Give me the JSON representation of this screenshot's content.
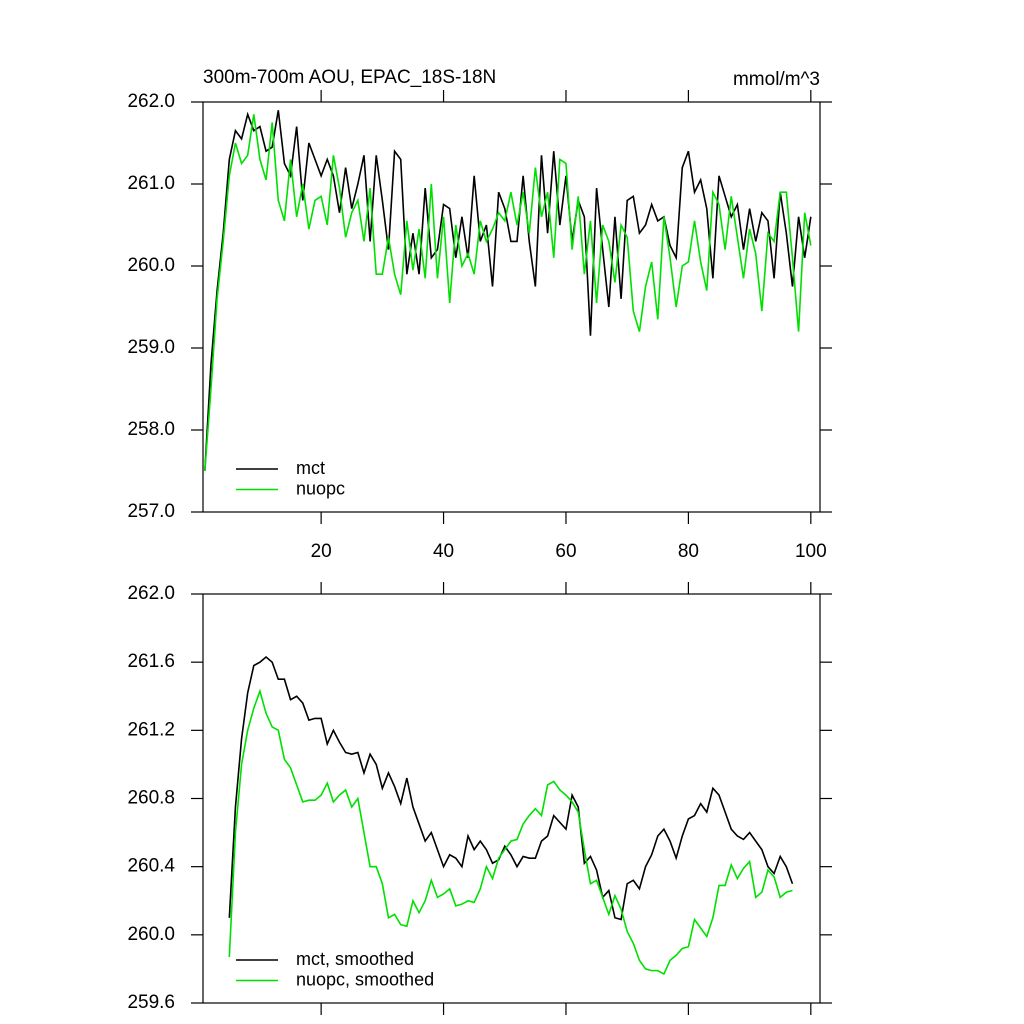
{
  "chart_data": [
    {
      "type": "line",
      "title": "300m-700m AOU, EPAC_18S-18N",
      "units": "mmol/m^3",
      "x": [
        1,
        2,
        3,
        4,
        5,
        6,
        7,
        8,
        9,
        10,
        11,
        12,
        13,
        14,
        15,
        16,
        17,
        18,
        19,
        20,
        21,
        22,
        23,
        24,
        25,
        26,
        27,
        28,
        29,
        30,
        31,
        32,
        33,
        34,
        35,
        36,
        37,
        38,
        39,
        40,
        41,
        42,
        43,
        44,
        45,
        46,
        47,
        48,
        49,
        50,
        51,
        52,
        53,
        54,
        55,
        56,
        57,
        58,
        59,
        60,
        61,
        62,
        63,
        64,
        65,
        66,
        67,
        68,
        69,
        70,
        71,
        72,
        73,
        74,
        75,
        76,
        77,
        78,
        79,
        80,
        81,
        82,
        83,
        84,
        85,
        86,
        87,
        88,
        89,
        90,
        91,
        92,
        93,
        94,
        95,
        96,
        97,
        98,
        99,
        100
      ],
      "series": [
        {
          "name": "mct",
          "color": "#000000",
          "values": [
            257.5,
            258.8,
            259.7,
            260.4,
            261.3,
            261.65,
            261.55,
            261.85,
            261.65,
            261.7,
            261.4,
            261.45,
            261.9,
            261.25,
            261.1,
            261.7,
            260.8,
            261.5,
            261.3,
            261.1,
            261.3,
            261.1,
            260.65,
            261.2,
            260.7,
            261.0,
            261.35,
            260.3,
            261.35,
            260.8,
            260.2,
            261.4,
            261.3,
            259.9,
            260.4,
            259.9,
            260.95,
            260.1,
            260.2,
            260.75,
            260.7,
            260.1,
            260.6,
            260.1,
            261.1,
            260.3,
            260.5,
            259.75,
            260.9,
            260.7,
            260.3,
            260.3,
            261.1,
            260.3,
            259.75,
            261.35,
            260.4,
            261.4,
            260.5,
            261.1,
            260.3,
            260.8,
            260.6,
            259.15,
            260.95,
            260.2,
            259.5,
            260.6,
            259.6,
            260.8,
            260.85,
            260.4,
            260.5,
            260.75,
            260.55,
            260.6,
            260.25,
            260.1,
            261.2,
            261.4,
            260.9,
            261.05,
            260.7,
            259.85,
            261.1,
            260.85,
            260.6,
            260.75,
            260.2,
            260.7,
            260.3,
            260.65,
            260.55,
            259.85,
            260.9,
            260.4,
            259.75,
            260.6,
            260.1,
            260.6
          ]
        },
        {
          "name": "nuopc",
          "color": "#00e000",
          "values": [
            257.5,
            258.5,
            259.6,
            260.3,
            261.1,
            261.5,
            261.25,
            261.35,
            261.85,
            261.3,
            261.05,
            261.75,
            260.8,
            260.55,
            261.3,
            260.6,
            261.0,
            260.45,
            260.8,
            260.85,
            260.5,
            261.35,
            260.95,
            260.35,
            260.65,
            260.8,
            260.3,
            260.95,
            259.9,
            259.9,
            260.35,
            259.9,
            259.65,
            260.55,
            259.95,
            260.45,
            259.85,
            261.0,
            259.85,
            260.6,
            259.55,
            260.5,
            260.0,
            260.15,
            259.9,
            260.55,
            260.3,
            260.45,
            260.65,
            260.55,
            260.9,
            260.5,
            260.9,
            260.4,
            261.2,
            260.6,
            260.9,
            260.1,
            261.3,
            261.25,
            260.2,
            260.85,
            259.9,
            260.55,
            259.55,
            260.5,
            260.3,
            259.8,
            260.5,
            260.35,
            259.45,
            259.2,
            259.75,
            260.05,
            259.35,
            260.6,
            260.1,
            259.5,
            260.0,
            260.05,
            260.55,
            260.05,
            259.7,
            260.9,
            260.75,
            260.2,
            260.85,
            260.35,
            259.85,
            260.45,
            260.15,
            259.45,
            260.4,
            260.3,
            260.9,
            260.9,
            260.1,
            259.2,
            260.65,
            260.25
          ]
        }
      ],
      "xlim": [
        0.7,
        101.5
      ],
      "xticks": [
        20,
        40,
        60,
        80,
        100
      ],
      "xtick_labels": true,
      "ylim": [
        257,
        262
      ],
      "yticks": [
        {
          "value": 257,
          "label": "257.0"
        },
        {
          "value": 258,
          "label": "258.0"
        },
        {
          "value": 259,
          "label": "259.0"
        },
        {
          "value": 260,
          "label": "260.0"
        },
        {
          "value": 261,
          "label": "261.0"
        },
        {
          "value": 262,
          "label": "262.0"
        }
      ],
      "legend": "lower left"
    },
    {
      "type": "line",
      "x": [
        5,
        6,
        7,
        8,
        9,
        10,
        11,
        12,
        13,
        14,
        15,
        16,
        17,
        18,
        19,
        20,
        21,
        22,
        23,
        24,
        25,
        26,
        27,
        28,
        29,
        30,
        31,
        32,
        33,
        34,
        35,
        36,
        37,
        38,
        39,
        40,
        41,
        42,
        43,
        44,
        45,
        46,
        47,
        48,
        49,
        50,
        51,
        52,
        53,
        54,
        55,
        56,
        57,
        58,
        59,
        60,
        61,
        62,
        63,
        64,
        65,
        66,
        67,
        68,
        69,
        70,
        71,
        72,
        73,
        74,
        75,
        76,
        77,
        78,
        79,
        80,
        81,
        82,
        83,
        84,
        85,
        86,
        87,
        88,
        89,
        90,
        91,
        92,
        93,
        94,
        95,
        96,
        97
      ],
      "series": [
        {
          "name": "mct, smoothed",
          "color": "#000000",
          "values": [
            260.1,
            260.75,
            261.15,
            261.42,
            261.58,
            261.6,
            261.63,
            261.6,
            261.5,
            261.5,
            261.38,
            261.4,
            261.36,
            261.26,
            261.27,
            261.27,
            261.12,
            261.2,
            261.13,
            261.07,
            261.06,
            261.07,
            260.95,
            261.06,
            261.0,
            260.86,
            260.95,
            260.87,
            260.77,
            260.92,
            260.75,
            260.65,
            260.55,
            260.6,
            260.5,
            260.4,
            260.47,
            260.45,
            260.4,
            260.58,
            260.5,
            260.55,
            260.5,
            260.42,
            260.44,
            260.52,
            260.47,
            260.4,
            260.46,
            260.45,
            260.45,
            260.55,
            260.58,
            260.7,
            260.66,
            260.62,
            260.82,
            260.75,
            260.42,
            260.46,
            260.38,
            260.22,
            260.26,
            260.1,
            260.09,
            260.3,
            260.32,
            260.27,
            260.4,
            260.47,
            260.58,
            260.62,
            260.55,
            260.45,
            260.58,
            260.68,
            260.7,
            260.77,
            260.72,
            260.86,
            260.82,
            260.72,
            260.62,
            260.58,
            260.56,
            260.6,
            260.55,
            260.5,
            260.4,
            260.36,
            260.46,
            260.4,
            260.3
          ]
        },
        {
          "name": "nuopc, smoothed",
          "color": "#00e000",
          "values": [
            259.87,
            260.6,
            261.0,
            261.2,
            261.33,
            261.43,
            261.3,
            261.22,
            261.2,
            261.03,
            260.98,
            260.88,
            260.78,
            260.79,
            260.79,
            260.82,
            260.89,
            260.78,
            260.82,
            260.85,
            260.75,
            260.8,
            260.6,
            260.4,
            260.4,
            260.3,
            260.1,
            260.12,
            260.06,
            260.05,
            260.2,
            260.13,
            260.2,
            260.32,
            260.22,
            260.24,
            260.27,
            260.17,
            260.18,
            260.2,
            260.19,
            260.27,
            260.4,
            260.33,
            260.45,
            260.5,
            260.55,
            260.56,
            260.65,
            260.7,
            260.74,
            260.7,
            260.88,
            260.9,
            260.85,
            260.82,
            260.78,
            260.72,
            260.5,
            260.3,
            260.32,
            260.22,
            260.12,
            260.23,
            260.15,
            260.02,
            259.95,
            259.85,
            259.8,
            259.79,
            259.79,
            259.77,
            259.85,
            259.88,
            259.92,
            259.93,
            260.09,
            260.04,
            259.99,
            260.1,
            260.29,
            260.29,
            260.41,
            260.33,
            260.39,
            260.43,
            260.22,
            260.25,
            260.38,
            260.34,
            260.22,
            260.25,
            260.26
          ]
        }
      ],
      "xlim": [
        0.7,
        101.5
      ],
      "xticks": [
        20,
        40,
        60,
        80,
        100
      ],
      "xtick_labels": false,
      "ylim": [
        259.6,
        262
      ],
      "yticks": [
        259.6,
        {
          "value": 260,
          "label": "260.0"
        },
        260.4,
        260.8,
        261.2,
        261.6,
        {
          "value": 262,
          "label": "262.0"
        }
      ],
      "legend": "lower left"
    }
  ]
}
